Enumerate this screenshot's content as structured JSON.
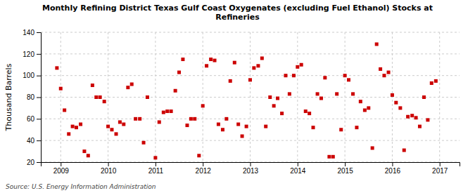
{
  "chart_data": {
    "type": "scatter",
    "title": "Monthly Refining District Texas Gulf Coast Oxygenates (excluding Fuel Ethanol) Stocks at\nRefineries",
    "ylabel": "Thousand Barrels",
    "source": "Source: U.S. Energy Information Administration",
    "color": "#cc0000",
    "marker": "square",
    "grid": true,
    "xlim": [
      2008.58,
      2017.42
    ],
    "xticks": [
      2009,
      2010,
      2011,
      2012,
      2013,
      2014,
      2015,
      2016,
      2017
    ],
    "ylim": [
      20,
      140
    ],
    "yticks": [
      20,
      40,
      60,
      80,
      100,
      120,
      140
    ],
    "x": [
      2008.92,
      2009.0,
      2009.08,
      2009.17,
      2009.25,
      2009.33,
      2009.42,
      2009.5,
      2009.58,
      2009.67,
      2009.75,
      2009.83,
      2009.92,
      2010.0,
      2010.08,
      2010.17,
      2010.25,
      2010.33,
      2010.42,
      2010.5,
      2010.58,
      2010.67,
      2010.75,
      2010.83,
      2011.0,
      2011.08,
      2011.17,
      2011.25,
      2011.33,
      2011.42,
      2011.5,
      2011.58,
      2011.67,
      2011.75,
      2011.83,
      2011.92,
      2012.0,
      2012.08,
      2012.17,
      2012.25,
      2012.33,
      2012.42,
      2012.5,
      2012.58,
      2012.67,
      2012.75,
      2012.83,
      2012.92,
      2013.0,
      2013.08,
      2013.17,
      2013.25,
      2013.33,
      2013.42,
      2013.5,
      2013.58,
      2013.67,
      2013.75,
      2013.83,
      2013.92,
      2014.0,
      2014.08,
      2014.17,
      2014.25,
      2014.33,
      2014.42,
      2014.5,
      2014.58,
      2014.67,
      2014.75,
      2014.83,
      2014.92,
      2015.0,
      2015.08,
      2015.17,
      2015.25,
      2015.33,
      2015.42,
      2015.5,
      2015.58,
      2015.67,
      2015.75,
      2015.83,
      2015.92,
      2016.0,
      2016.08,
      2016.17,
      2016.25,
      2016.33,
      2016.42,
      2016.5,
      2016.58,
      2016.67,
      2016.75,
      2016.83,
      2016.92
    ],
    "values": [
      107,
      88,
      68,
      46,
      53,
      52,
      55,
      30,
      26,
      91,
      80,
      80,
      76,
      53,
      50,
      46,
      57,
      55,
      89,
      92,
      60,
      60,
      38,
      80,
      24,
      57,
      66,
      67,
      67,
      86,
      103,
      115,
      54,
      60,
      60,
      26,
      72,
      109,
      115,
      114,
      55,
      50,
      60,
      95,
      112,
      55,
      44,
      53,
      96,
      107,
      109,
      116,
      53,
      80,
      72,
      79,
      65,
      100,
      83,
      100,
      108,
      110,
      67,
      65,
      52,
      83,
      79,
      98,
      25,
      25,
      83,
      50,
      100,
      96,
      83,
      52,
      76,
      68,
      70,
      33,
      129,
      106,
      100,
      103,
      82,
      75,
      70,
      31,
      62,
      63,
      61,
      53,
      80,
      59,
      93,
      95
    ]
  }
}
